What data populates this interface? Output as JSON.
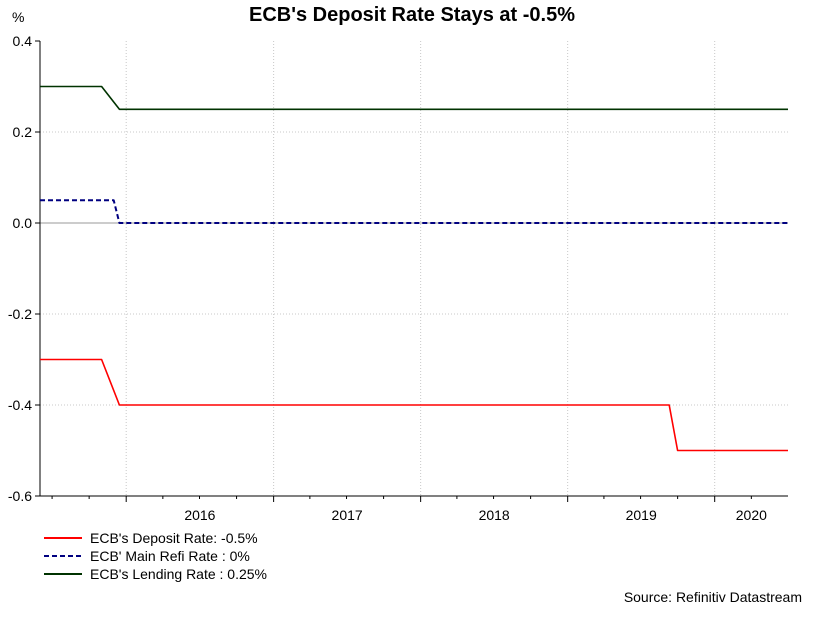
{
  "chart_data": {
    "type": "line",
    "title": "ECB's Deposit Rate Stays at -0.5%",
    "ylabel": "%",
    "xlabel": "",
    "ylim": [
      -0.6,
      0.4
    ],
    "yticks": [
      "0.4",
      "0.2",
      "0.0",
      "-0.2",
      "-0.4",
      "-0.6"
    ],
    "ytick_values": [
      0.4,
      0.2,
      0.0,
      -0.2,
      -0.4,
      -0.6
    ],
    "xlim": [
      "2015-06-01",
      "2020-07-01"
    ],
    "year_labels": [
      "2016",
      "2017",
      "2018",
      "2019",
      "2020"
    ],
    "grid": true,
    "legend_position": "bottom-left",
    "series": [
      {
        "name": "ECB's Deposit Rate: -0.5%",
        "color": "#ff0000",
        "style": "solid",
        "points": [
          [
            "2015-06-01",
            -0.3
          ],
          [
            "2015-11-01",
            -0.3
          ],
          [
            "2015-12-15",
            -0.4
          ],
          [
            "2019-09-10",
            -0.4
          ],
          [
            "2019-10-01",
            -0.5
          ],
          [
            "2020-07-01",
            -0.5
          ]
        ]
      },
      {
        "name": "ECB' Main Refi Rate : 0%",
        "color": "#000080",
        "style": "dashed",
        "points": [
          [
            "2015-06-01",
            0.05
          ],
          [
            "2015-12-01",
            0.05
          ],
          [
            "2015-12-15",
            0.0
          ],
          [
            "2020-07-01",
            0.0
          ]
        ]
      },
      {
        "name": "ECB's Lending Rate : 0.25%",
        "color": "#003300",
        "style": "solid",
        "points": [
          [
            "2015-06-01",
            0.3
          ],
          [
            "2015-11-01",
            0.3
          ],
          [
            "2015-12-15",
            0.25
          ],
          [
            "2020-07-01",
            0.25
          ]
        ]
      }
    ]
  },
  "source": "Source: Refinitiv Datastream"
}
